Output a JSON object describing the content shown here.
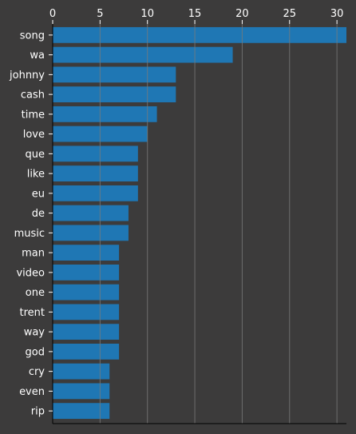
{
  "chart_data": {
    "type": "bar",
    "orientation": "horizontal",
    "categories": [
      "song",
      "wa",
      "johnny",
      "cash",
      "time",
      "love",
      "que",
      "like",
      "eu",
      "de",
      "music",
      "man",
      "video",
      "one",
      "trent",
      "way",
      "god",
      "cry",
      "even",
      "rip"
    ],
    "values": [
      31,
      19,
      13,
      13,
      11,
      10,
      9,
      9,
      9,
      8,
      8,
      7,
      7,
      7,
      7,
      7,
      7,
      6,
      6,
      6
    ],
    "xticks": [
      "0",
      "5",
      "10",
      "15",
      "20",
      "25",
      "30"
    ],
    "xlim": [
      0,
      31
    ],
    "x_axis_position": "top",
    "grid": "vertical",
    "title": "",
    "xlabel": "",
    "ylabel": "",
    "bar_color": "#1f77b4",
    "background_color": "#3c3b3b",
    "grid_color": "#7a7a7a",
    "text_color": "#ffffff"
  }
}
